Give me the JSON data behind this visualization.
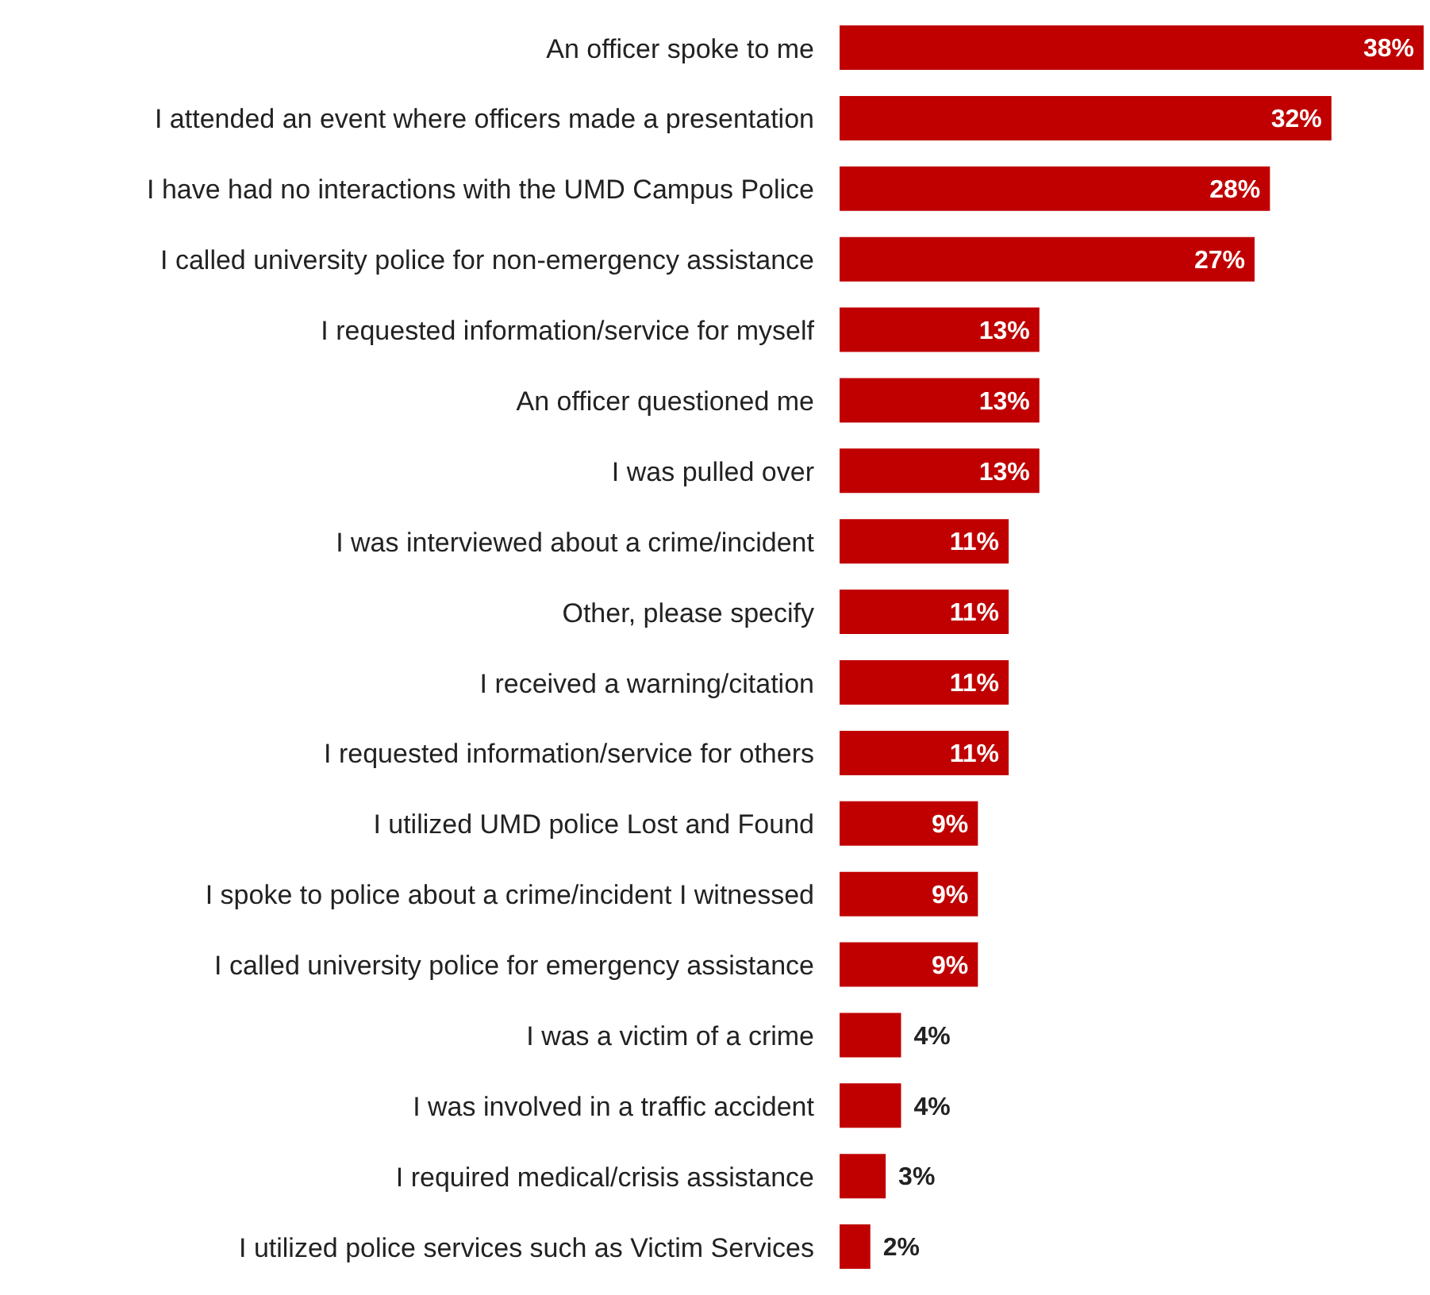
{
  "chart_data": {
    "type": "bar",
    "orientation": "horizontal",
    "categories": [
      "An officer spoke to me",
      "I attended an event where officers made a presentation",
      "I have had no interactions with the UMD Campus Police",
      "I called university police for non-emergency assistance",
      "I requested information/service for myself",
      "An officer questioned me",
      "I was pulled over",
      "I was interviewed about a crime/incident",
      "Other, please specify",
      "I received a warning/citation",
      "I requested information/service for others",
      "I utilized UMD police Lost and Found",
      "I spoke to police about a crime/incident I witnessed",
      "I called university police for emergency assistance",
      "I was a victim of a crime",
      "I was involved in a traffic accident",
      "I required medical/crisis assistance",
      "I utilized police services such as Victim Services"
    ],
    "values": [
      38,
      32,
      28,
      27,
      13,
      13,
      13,
      11,
      11,
      11,
      11,
      9,
      9,
      9,
      4,
      4,
      3,
      2
    ],
    "value_labels": [
      "38%",
      "32%",
      "28%",
      "27%",
      "13%",
      "13%",
      "13%",
      "11%",
      "11%",
      "11%",
      "11%",
      "9%",
      "9%",
      "9%",
      "4%",
      "4%",
      "3%",
      "2%"
    ],
    "color": "#c00000"
  }
}
